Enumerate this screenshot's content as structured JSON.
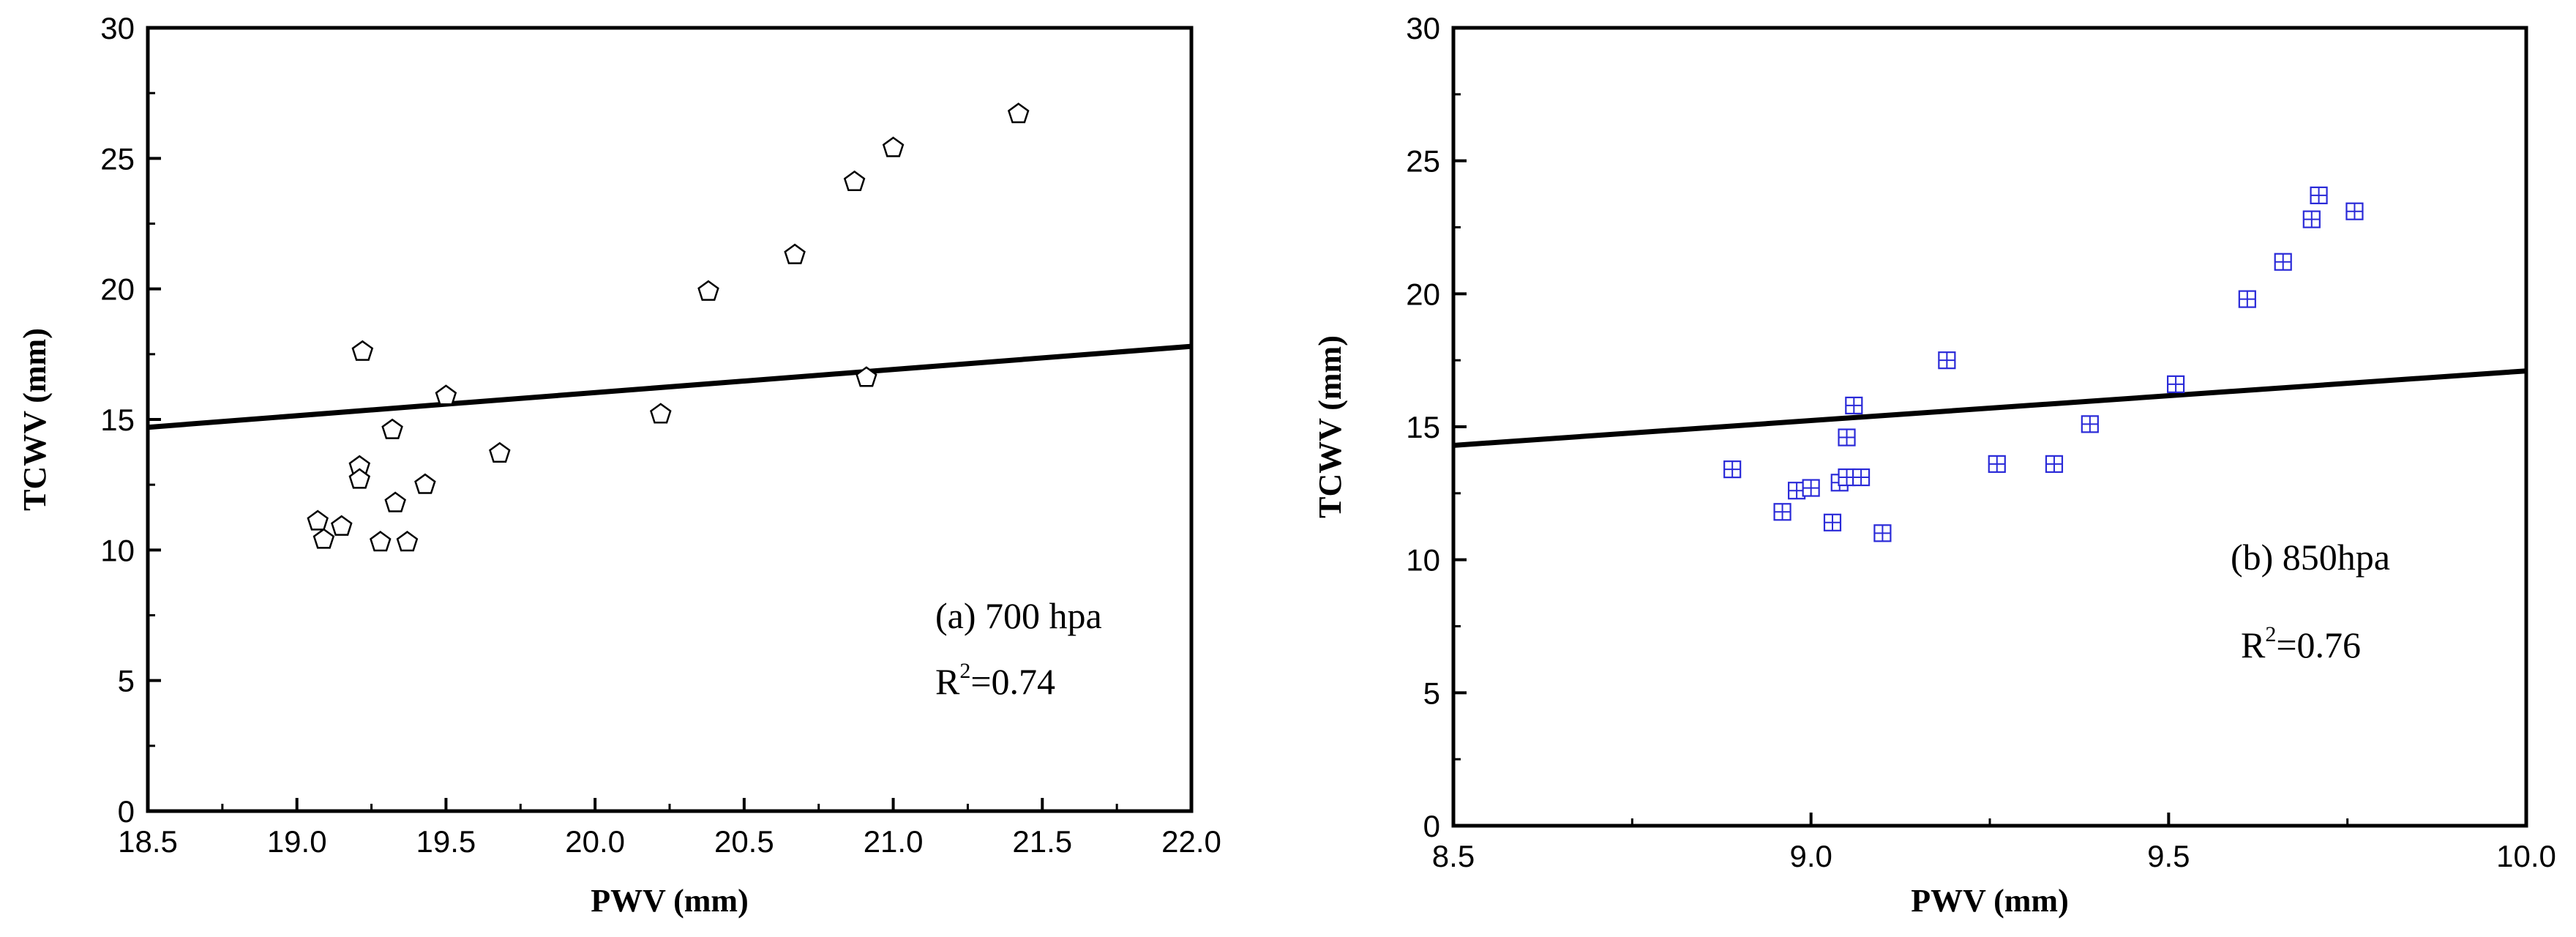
{
  "chart_data": [
    {
      "type": "scatter",
      "panel": "a",
      "title": "(a) 700 hpa",
      "annotation": "(a) 700 hpa",
      "r2_label": "R",
      "r2_sup": "2",
      "r2_value": "=0.74",
      "xlabel": "PWV (mm)",
      "ylabel": "TCWV (mm)",
      "xlim": [
        18.5,
        22.0
      ],
      "ylim": [
        0,
        30
      ],
      "xticks": [
        18.5,
        19.0,
        19.5,
        20.0,
        20.5,
        21.0,
        21.5,
        22.0
      ],
      "xtick_labels": [
        "18.5",
        "19.0",
        "19.5",
        "20.0",
        "20.5",
        "21.0",
        "21.5",
        "22.0"
      ],
      "yticks": [
        0,
        5,
        10,
        15,
        20,
        25,
        30
      ],
      "ytick_labels": [
        "0",
        "5",
        "10",
        "15",
        "20",
        "25",
        "30"
      ],
      "marker": "pentagon",
      "marker_color": "#000000",
      "series": [
        {
          "name": "700 hpa",
          "x": [
            19.07,
            19.09,
            19.15,
            19.21,
            19.21,
            19.22,
            19.28,
            19.32,
            19.33,
            19.37,
            19.43,
            19.5,
            19.68,
            20.22,
            20.38,
            20.67,
            20.87,
            20.91,
            21.0,
            21.42
          ],
          "y": [
            11.1,
            10.4,
            10.9,
            13.2,
            12.7,
            17.6,
            10.3,
            14.6,
            11.8,
            10.3,
            12.5,
            15.9,
            13.7,
            15.2,
            19.9,
            21.3,
            24.1,
            16.6,
            25.4,
            26.7
          ]
        }
      ],
      "fit_line": {
        "x": [
          18.5,
          22.0
        ],
        "y": [
          14.7,
          17.8
        ]
      }
    },
    {
      "type": "scatter",
      "panel": "b",
      "title": "(b) 850hpa",
      "annotation": "(b) 850hpa",
      "r2_label": "R",
      "r2_sup": "2",
      "r2_value": "=0.76",
      "xlabel": "PWV (mm)",
      "ylabel": "TCWV (mm)",
      "xlim": [
        8.5,
        10.0
      ],
      "ylim": [
        0,
        30
      ],
      "xticks": [
        8.5,
        9.0,
        9.5,
        10.0
      ],
      "xtick_labels": [
        "8.5",
        "9.0",
        "9.5",
        "10.0"
      ],
      "yticks": [
        0,
        5,
        10,
        15,
        20,
        25,
        30
      ],
      "ytick_labels": [
        "0",
        "5",
        "10",
        "15",
        "20",
        "25",
        "30"
      ],
      "marker": "boxed-plus",
      "marker_color": "#2a2ad8",
      "series": [
        {
          "name": "850hpa",
          "x": [
            8.89,
            8.96,
            8.98,
            9.0,
            9.03,
            9.04,
            9.05,
            9.05,
            9.06,
            9.07,
            9.1,
            9.19,
            9.26,
            9.34,
            9.39,
            9.51,
            9.61,
            9.66,
            9.7,
            9.71,
            9.76
          ],
          "y": [
            13.4,
            11.8,
            12.6,
            12.7,
            11.4,
            12.9,
            13.1,
            14.6,
            15.8,
            13.1,
            11.0,
            17.5,
            13.6,
            13.6,
            15.1,
            16.6,
            19.8,
            21.2,
            22.8,
            23.7,
            23.1
          ]
        }
      ],
      "fit_line": {
        "x": [
          8.5,
          10.0
        ],
        "y": [
          14.3,
          17.1
        ]
      }
    }
  ]
}
